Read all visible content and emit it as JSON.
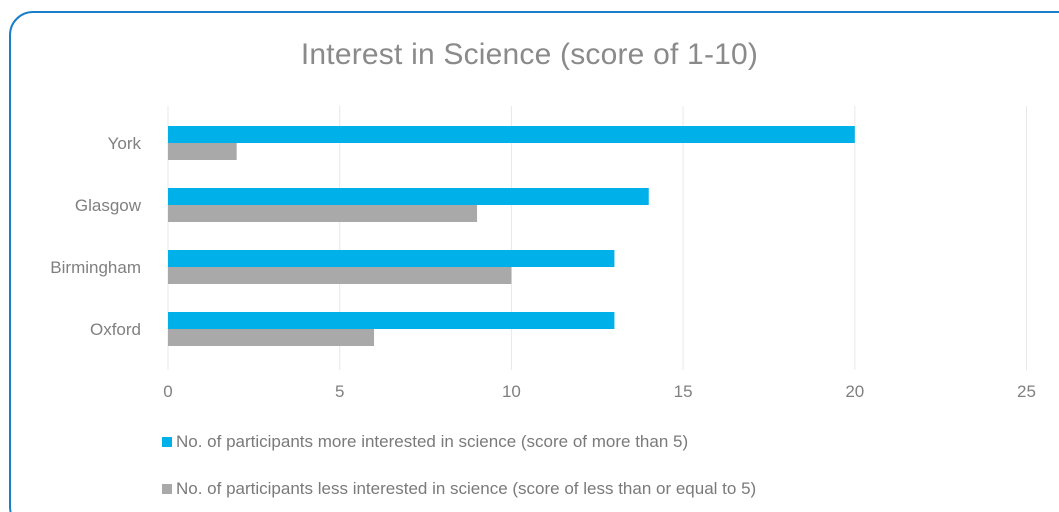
{
  "chart_data": {
    "type": "bar",
    "orientation": "horizontal",
    "title": "Interest in Science (score of 1-10)",
    "categories": [
      "York",
      "Glasgow",
      "Birmingham",
      "Oxford"
    ],
    "series": [
      {
        "name": "No. of participants more interested in science (score of more than 5)",
        "color": "#00b0e8",
        "values": [
          20,
          14,
          13,
          13
        ]
      },
      {
        "name": "No. of participants less interested in science (score of less than or equal to 5)",
        "color": "#a9a9a9",
        "values": [
          2,
          9,
          10,
          6
        ]
      }
    ],
    "xlim": [
      0,
      25
    ],
    "xticks": [
      0,
      5,
      10,
      15,
      20,
      25
    ],
    "grid": true,
    "legend_position": "bottom"
  },
  "colors": {
    "border": "#1a7fc8",
    "gridline": "#e8e8e8",
    "text": "#808080"
  }
}
